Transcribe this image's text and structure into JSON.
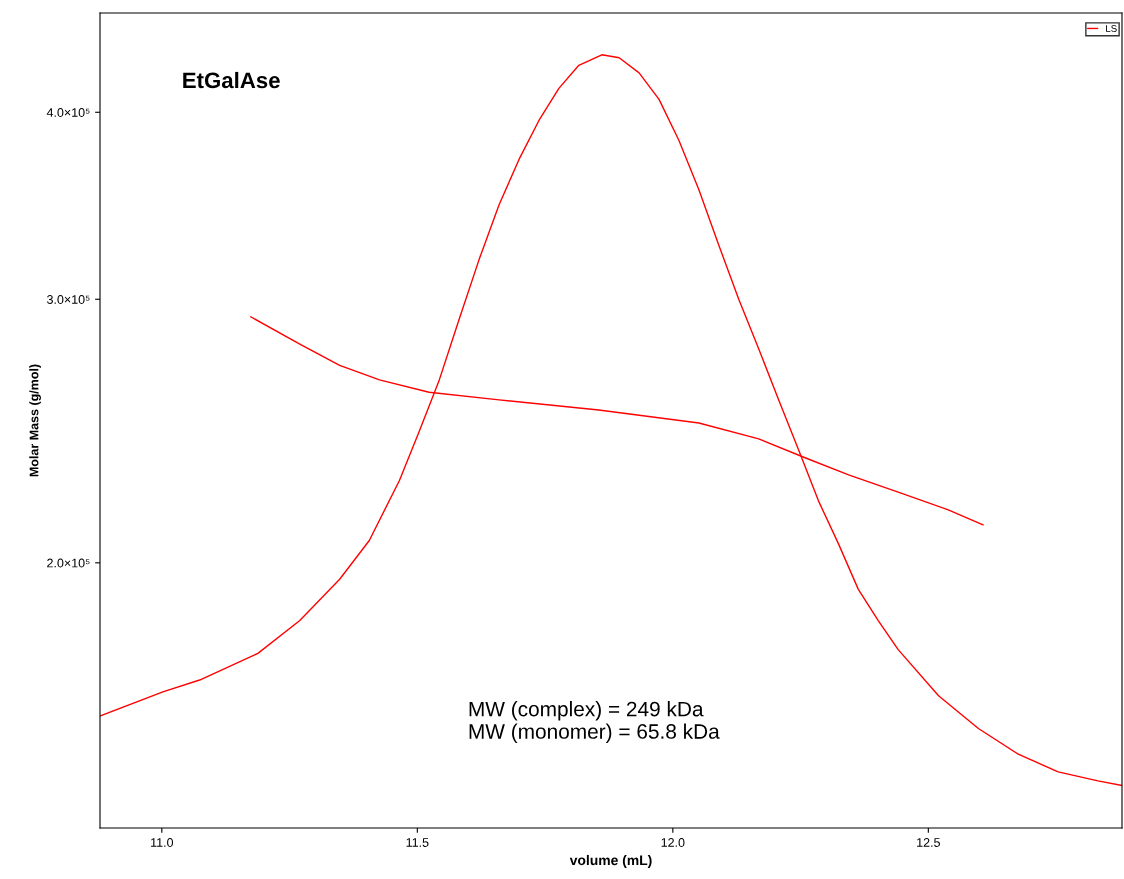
{
  "chart_data": {
    "type": "line",
    "xlabel": "volume (mL)",
    "ylabel": "Molar Mass (g/mol)",
    "log": "y",
    "grid": false,
    "legend": "top right",
    "marker": "none",
    "line_style": "solid",
    "xlim": [
      10.879,
      12.879
    ],
    "ylim": [
      133000,
      466000
    ],
    "xticks": [
      {
        "value": 11,
        "label": "11.0"
      },
      {
        "value": 11.5,
        "label": "11.5"
      },
      {
        "value": 12,
        "label": "12.0"
      },
      {
        "value": 12.5,
        "label": "12.5"
      }
    ],
    "yticks": [
      {
        "value": 200000,
        "label": "2.0×10⁵"
      },
      {
        "value": 300000,
        "label": "3.0×10⁵"
      },
      {
        "value": 400000,
        "label": "4.0×10⁵"
      }
    ],
    "annotations": [
      "EtGalAse",
      "MW (complex) = 249 kDa\nMW (monomer) = 65.8 kDa"
    ],
    "series": [
      {
        "name": "LS",
        "color": "#ff0000",
        "x": [
          10.879,
          11.002,
          11.074,
          11.188,
          11.27,
          11.348,
          11.406,
          11.465,
          11.504,
          11.543,
          11.582,
          11.621,
          11.66,
          11.699,
          11.738,
          11.777,
          11.816,
          11.861,
          11.895,
          11.934,
          11.973,
          12.012,
          12.051,
          12.09,
          12.129,
          12.168,
          12.207,
          12.246,
          12.285,
          12.324,
          12.363,
          12.402,
          12.441,
          12.52,
          12.598,
          12.676,
          12.754,
          12.832,
          12.879
        ],
        "values": [
          158000,
          164000,
          167000,
          174000,
          183000,
          195000,
          207000,
          227000,
          245000,
          265000,
          291000,
          319000,
          347000,
          372000,
          395000,
          415000,
          430000,
          437000,
          435000,
          425000,
          408000,
          383000,
          355000,
          326000,
          300000,
          278000,
          257000,
          238000,
          220000,
          206000,
          192000,
          183000,
          175000,
          163000,
          155000,
          149000,
          145000,
          143000,
          142000
        ]
      },
      {
        "color": "#ff0000",
        "x": [
          11.174,
          11.27,
          11.348,
          11.426,
          11.523,
          11.66,
          11.855,
          12.051,
          12.168,
          12.26,
          12.344,
          12.441,
          12.539,
          12.607
        ],
        "values": [
          292000,
          280000,
          271000,
          265000,
          260000,
          257000,
          253000,
          248000,
          242000,
          235000,
          229000,
          223000,
          217000,
          212000
        ]
      }
    ]
  }
}
